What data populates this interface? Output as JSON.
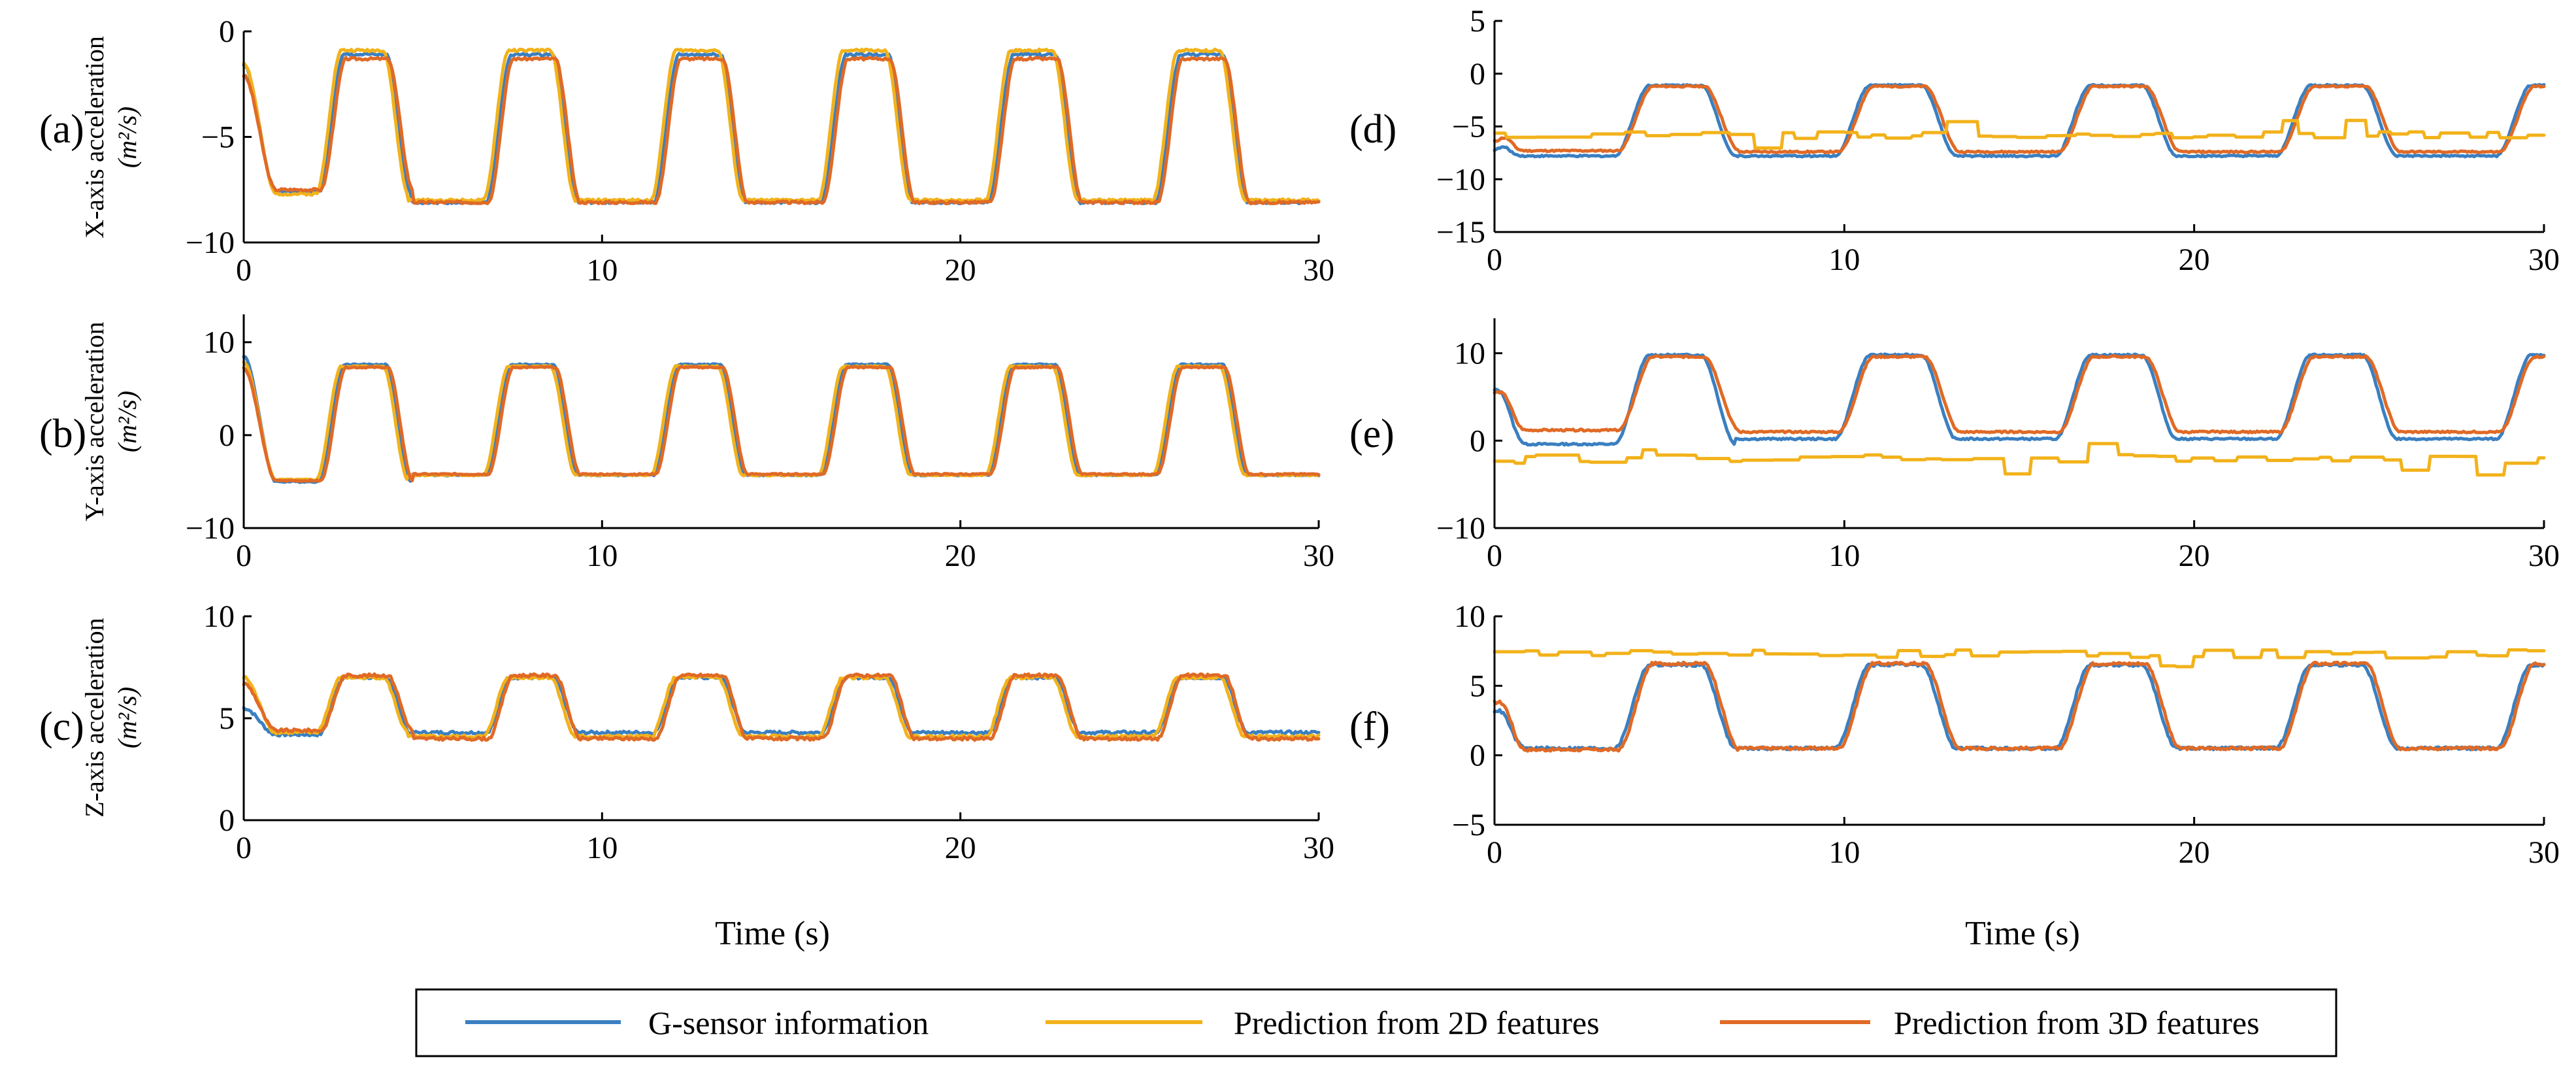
{
  "colors": {
    "g_sensor": "#3a7fc1",
    "pred_2d": "#f2b21b",
    "pred_3d": "#e06a26"
  },
  "x_axis_label": "Time (s)",
  "legend": {
    "items": [
      {
        "label": "G-sensor information",
        "color": "#3a7fc1"
      },
      {
        "label": "Prediction from 2D features",
        "color": "#f2b21b"
      },
      {
        "label": "Prediction from 3D features",
        "color": "#e06a26"
      }
    ]
  },
  "chart_data": [
    {
      "type": "line",
      "id": "a",
      "panel_label": "(a)",
      "ylabel_line1": "X-axis acceleration",
      "ylabel_line2": "(m²/s)",
      "xlim": [
        0,
        30
      ],
      "ylim": [
        -10,
        0
      ],
      "xticks": [
        0,
        10,
        20,
        30
      ],
      "yticks": [
        0,
        -5,
        -10
      ],
      "period": 4.67,
      "phase": 0,
      "transition": 0.7,
      "series": [
        {
          "name": "G-sensor information",
          "key": "g_sensor",
          "low": -8.1,
          "high": -1.1,
          "start": -1.6,
          "first_low": -7.6,
          "noise": 0.12,
          "seed": 1
        },
        {
          "name": "Prediction from 2D features",
          "key": "pred_2d",
          "low": -8.0,
          "high": -0.9,
          "start": -1.5,
          "first_low": -7.7,
          "noise": 0.12,
          "seed": 2,
          "shift": -0.08
        },
        {
          "name": "Prediction from 3D features",
          "key": "pred_3d",
          "low": -8.1,
          "high": -1.3,
          "start": -2.1,
          "first_low": -7.5,
          "noise": 0.12,
          "seed": 3,
          "shift": 0.05
        }
      ]
    },
    {
      "type": "line",
      "id": "b",
      "panel_label": "(b)",
      "ylabel_line1": "Y-axis acceleration",
      "ylabel_line2": "(m²/s)",
      "xlim": [
        0,
        30
      ],
      "ylim": [
        -10,
        13
      ],
      "xticks": [
        0,
        10,
        20,
        30
      ],
      "yticks": [
        10,
        0,
        -10
      ],
      "period": 4.67,
      "phase": 0,
      "transition": 0.7,
      "series": [
        {
          "name": "G-sensor information",
          "key": "g_sensor",
          "low": -4.3,
          "high": 7.6,
          "start": 8.5,
          "first_low": -5.0,
          "noise": 0.15,
          "seed": 4
        },
        {
          "name": "Prediction from 2D features",
          "key": "pred_2d",
          "low": -4.3,
          "high": 7.4,
          "start": 7.8,
          "first_low": -4.8,
          "noise": 0.15,
          "seed": 5,
          "shift": -0.08
        },
        {
          "name": "Prediction from 3D features",
          "key": "pred_3d",
          "low": -4.2,
          "high": 7.3,
          "start": 7.2,
          "first_low": -4.9,
          "noise": 0.15,
          "seed": 6,
          "shift": 0.05
        }
      ]
    },
    {
      "type": "line",
      "id": "c",
      "panel_label": "(c)",
      "ylabel_line1": "Z-axis acceleration",
      "ylabel_line2": "(m²/s)",
      "xlim": [
        0,
        30
      ],
      "ylim": [
        0,
        10
      ],
      "xticks": [
        0,
        10,
        20,
        30
      ],
      "yticks": [
        10,
        5,
        0
      ],
      "period": 4.67,
      "phase": 0,
      "transition": 0.7,
      "series": [
        {
          "name": "G-sensor information",
          "key": "g_sensor",
          "low": 4.3,
          "high": 7.0,
          "start": 5.5,
          "first_low": 4.2,
          "noise": 0.15,
          "seed": 7
        },
        {
          "name": "Prediction from 2D features",
          "key": "pred_2d",
          "low": 4.1,
          "high": 7.0,
          "start": 7.0,
          "first_low": 4.3,
          "noise": 0.15,
          "seed": 8,
          "shift": -0.08
        },
        {
          "name": "Prediction from 3D features",
          "key": "pred_3d",
          "low": 4.0,
          "high": 7.1,
          "start": 6.7,
          "first_low": 4.4,
          "noise": 0.15,
          "seed": 9,
          "shift": 0.05
        }
      ]
    },
    {
      "type": "line",
      "id": "d",
      "panel_label": "(d)",
      "ylabel_line1": "",
      "ylabel_line2": "",
      "xlim": [
        0,
        30
      ],
      "ylim": [
        -15,
        5
      ],
      "xticks": [
        0,
        10,
        20,
        30
      ],
      "yticks": [
        5,
        0,
        -5,
        -10,
        -15
      ],
      "period": 6.3,
      "phase": 0.6,
      "transition": 1.0,
      "series": [
        {
          "name": "G-sensor information",
          "key": "g_sensor",
          "low": -7.8,
          "high": -1.1,
          "start": -7.2,
          "first_low": -7.8,
          "noise": 0.15,
          "seed": 10
        },
        {
          "name": "Prediction from 3D features",
          "key": "pred_3d",
          "low": -7.4,
          "high": -1.2,
          "start": -6.4,
          "first_low": -7.3,
          "noise": 0.15,
          "seed": 11,
          "shift": 0.1
        },
        {
          "name": "Prediction from 2D features",
          "key": "pred_2d",
          "flat": -5.8,
          "noise": 0.35,
          "seed": 12
        }
      ]
    },
    {
      "type": "line",
      "id": "e",
      "panel_label": "(e)",
      "ylabel_line1": "",
      "ylabel_line2": "",
      "xlim": [
        0,
        30
      ],
      "ylim": [
        -10,
        14
      ],
      "xticks": [
        0,
        10,
        20,
        30
      ],
      "yticks": [
        10,
        0,
        -10
      ],
      "period": 6.3,
      "phase": 0.6,
      "transition": 1.0,
      "series": [
        {
          "name": "G-sensor information",
          "key": "g_sensor",
          "low": 0.2,
          "high": 9.8,
          "start": 5.8,
          "first_low": -0.4,
          "noise": 0.2,
          "seed": 13
        },
        {
          "name": "Prediction from 3D features",
          "key": "pred_3d",
          "low": 1.0,
          "high": 9.6,
          "start": 5.5,
          "first_low": 1.2,
          "noise": 0.2,
          "seed": 14,
          "shift": 0.1
        },
        {
          "name": "Prediction from 2D features",
          "key": "pred_2d",
          "flat": -2.1,
          "noise": 0.5,
          "seed": 15
        }
      ]
    },
    {
      "type": "line",
      "id": "f",
      "panel_label": "(f)",
      "ylabel_line1": "",
      "ylabel_line2": "",
      "xlim": [
        0,
        30
      ],
      "ylim": [
        -5,
        10
      ],
      "xticks": [
        0,
        10,
        20,
        30
      ],
      "yticks": [
        10,
        5,
        0,
        -5
      ],
      "period": 6.3,
      "phase": 0.6,
      "transition": 1.0,
      "series": [
        {
          "name": "G-sensor information",
          "key": "g_sensor",
          "low": 0.5,
          "high": 6.5,
          "start": 3.2,
          "first_low": 0.5,
          "noise": 0.2,
          "seed": 16
        },
        {
          "name": "Prediction from 3D features",
          "key": "pred_3d",
          "low": 0.5,
          "high": 6.6,
          "start": 3.8,
          "first_low": 0.4,
          "noise": 0.2,
          "seed": 17,
          "shift": 0.1
        },
        {
          "name": "Prediction from 2D features",
          "key": "pred_2d",
          "flat": 7.3,
          "noise": 0.3,
          "seed": 18
        }
      ]
    }
  ]
}
